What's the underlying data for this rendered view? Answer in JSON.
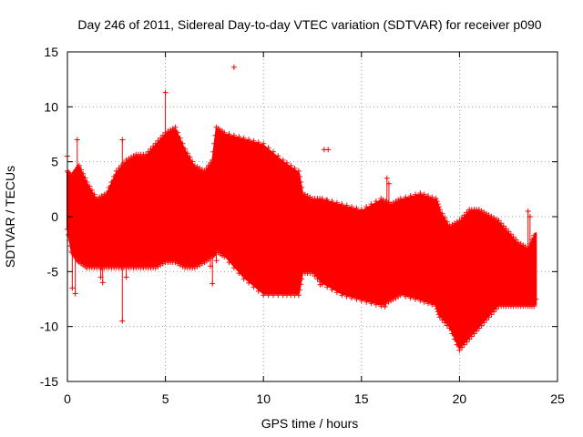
{
  "chart_data": {
    "type": "scatter",
    "title": "Day 246 of 2011, Sidereal Day-to-day VTEC variation (SDTVAR) for receiver p090",
    "xlabel": "GPS time / hours",
    "ylabel": "SDTVAR / TECUs",
    "xlim": [
      0,
      25
    ],
    "ylim": [
      -15,
      15
    ],
    "xticks": [
      0,
      5,
      10,
      15,
      20,
      25
    ],
    "yticks": [
      -15,
      -10,
      -5,
      0,
      5,
      10,
      15
    ],
    "grid": true,
    "marker": "+",
    "series": [
      {
        "name": "SDTVAR",
        "color": "#ff0000",
        "envelope": {
          "x": [
            0.0,
            0.2,
            0.4,
            0.6,
            1.0,
            1.5,
            2.0,
            2.5,
            3.0,
            3.5,
            4.0,
            4.5,
            5.0,
            5.5,
            6.0,
            6.5,
            7.0,
            7.4,
            7.6,
            8.0,
            9.0,
            10.0,
            11.0,
            11.8,
            12.0,
            12.5,
            13.0,
            14.0,
            15.0,
            16.0,
            16.5,
            17.0,
            18.0,
            18.8,
            19.0,
            19.5,
            20.0,
            20.5,
            21.0,
            21.5,
            22.0,
            22.5,
            23.0,
            23.5,
            23.9
          ],
          "upper": [
            4.0,
            3.5,
            4.0,
            4.5,
            3.0,
            1.5,
            2.0,
            4.0,
            5.0,
            5.5,
            5.5,
            6.5,
            7.5,
            8.0,
            6.0,
            4.5,
            4.0,
            5.0,
            8.0,
            7.5,
            7.0,
            6.5,
            5.0,
            4.0,
            2.0,
            1.5,
            1.5,
            1.0,
            0.5,
            1.5,
            1.0,
            1.5,
            2.0,
            1.5,
            0.5,
            -1.0,
            -0.5,
            0.5,
            0.5,
            0.0,
            -0.5,
            -1.5,
            -2.5,
            -3.0,
            -1.5
          ],
          "lower": [
            -1.0,
            -3.0,
            -3.5,
            -4.0,
            -4.5,
            -4.5,
            -4.5,
            -4.5,
            -4.5,
            -4.5,
            -4.5,
            -4.5,
            -4.0,
            -4.0,
            -4.5,
            -4.5,
            -4.0,
            -3.5,
            -3.0,
            -3.5,
            -5.5,
            -7.0,
            -7.0,
            -7.0,
            -5.0,
            -5.0,
            -6.0,
            -7.0,
            -7.5,
            -8.0,
            -7.5,
            -7.0,
            -7.5,
            -8.0,
            -9.0,
            -10.0,
            -12.0,
            -11.0,
            -10.0,
            -9.0,
            -8.0,
            -8.0,
            -8.0,
            -8.0,
            -8.0
          ]
        },
        "points": [
          [
            0.0,
            5.5
          ],
          [
            0.3,
            2.5
          ],
          [
            0.5,
            7.0
          ],
          [
            0.4,
            -7.0
          ],
          [
            0.25,
            -6.5
          ],
          [
            1.8,
            -6.0
          ],
          [
            1.7,
            -5.5
          ],
          [
            2.8,
            7.0
          ],
          [
            2.8,
            -9.5
          ],
          [
            3.0,
            -5.5
          ],
          [
            5.0,
            11.3
          ],
          [
            8.5,
            13.6
          ],
          [
            7.4,
            -6.1
          ],
          [
            7.3,
            -4.5
          ],
          [
            7.6,
            -4.0
          ],
          [
            13.1,
            6.1
          ],
          [
            13.3,
            6.1
          ],
          [
            13.2,
            1.5
          ],
          [
            12.9,
            -6.2
          ],
          [
            11.8,
            -5.9
          ],
          [
            16.3,
            3.5
          ],
          [
            16.4,
            3.0
          ],
          [
            16.2,
            -8.2
          ],
          [
            16.1,
            -7.8
          ],
          [
            23.5,
            0.5
          ],
          [
            23.6,
            0.0
          ],
          [
            23.8,
            -5.0
          ],
          [
            23.9,
            -7.5
          ]
        ]
      }
    ]
  }
}
